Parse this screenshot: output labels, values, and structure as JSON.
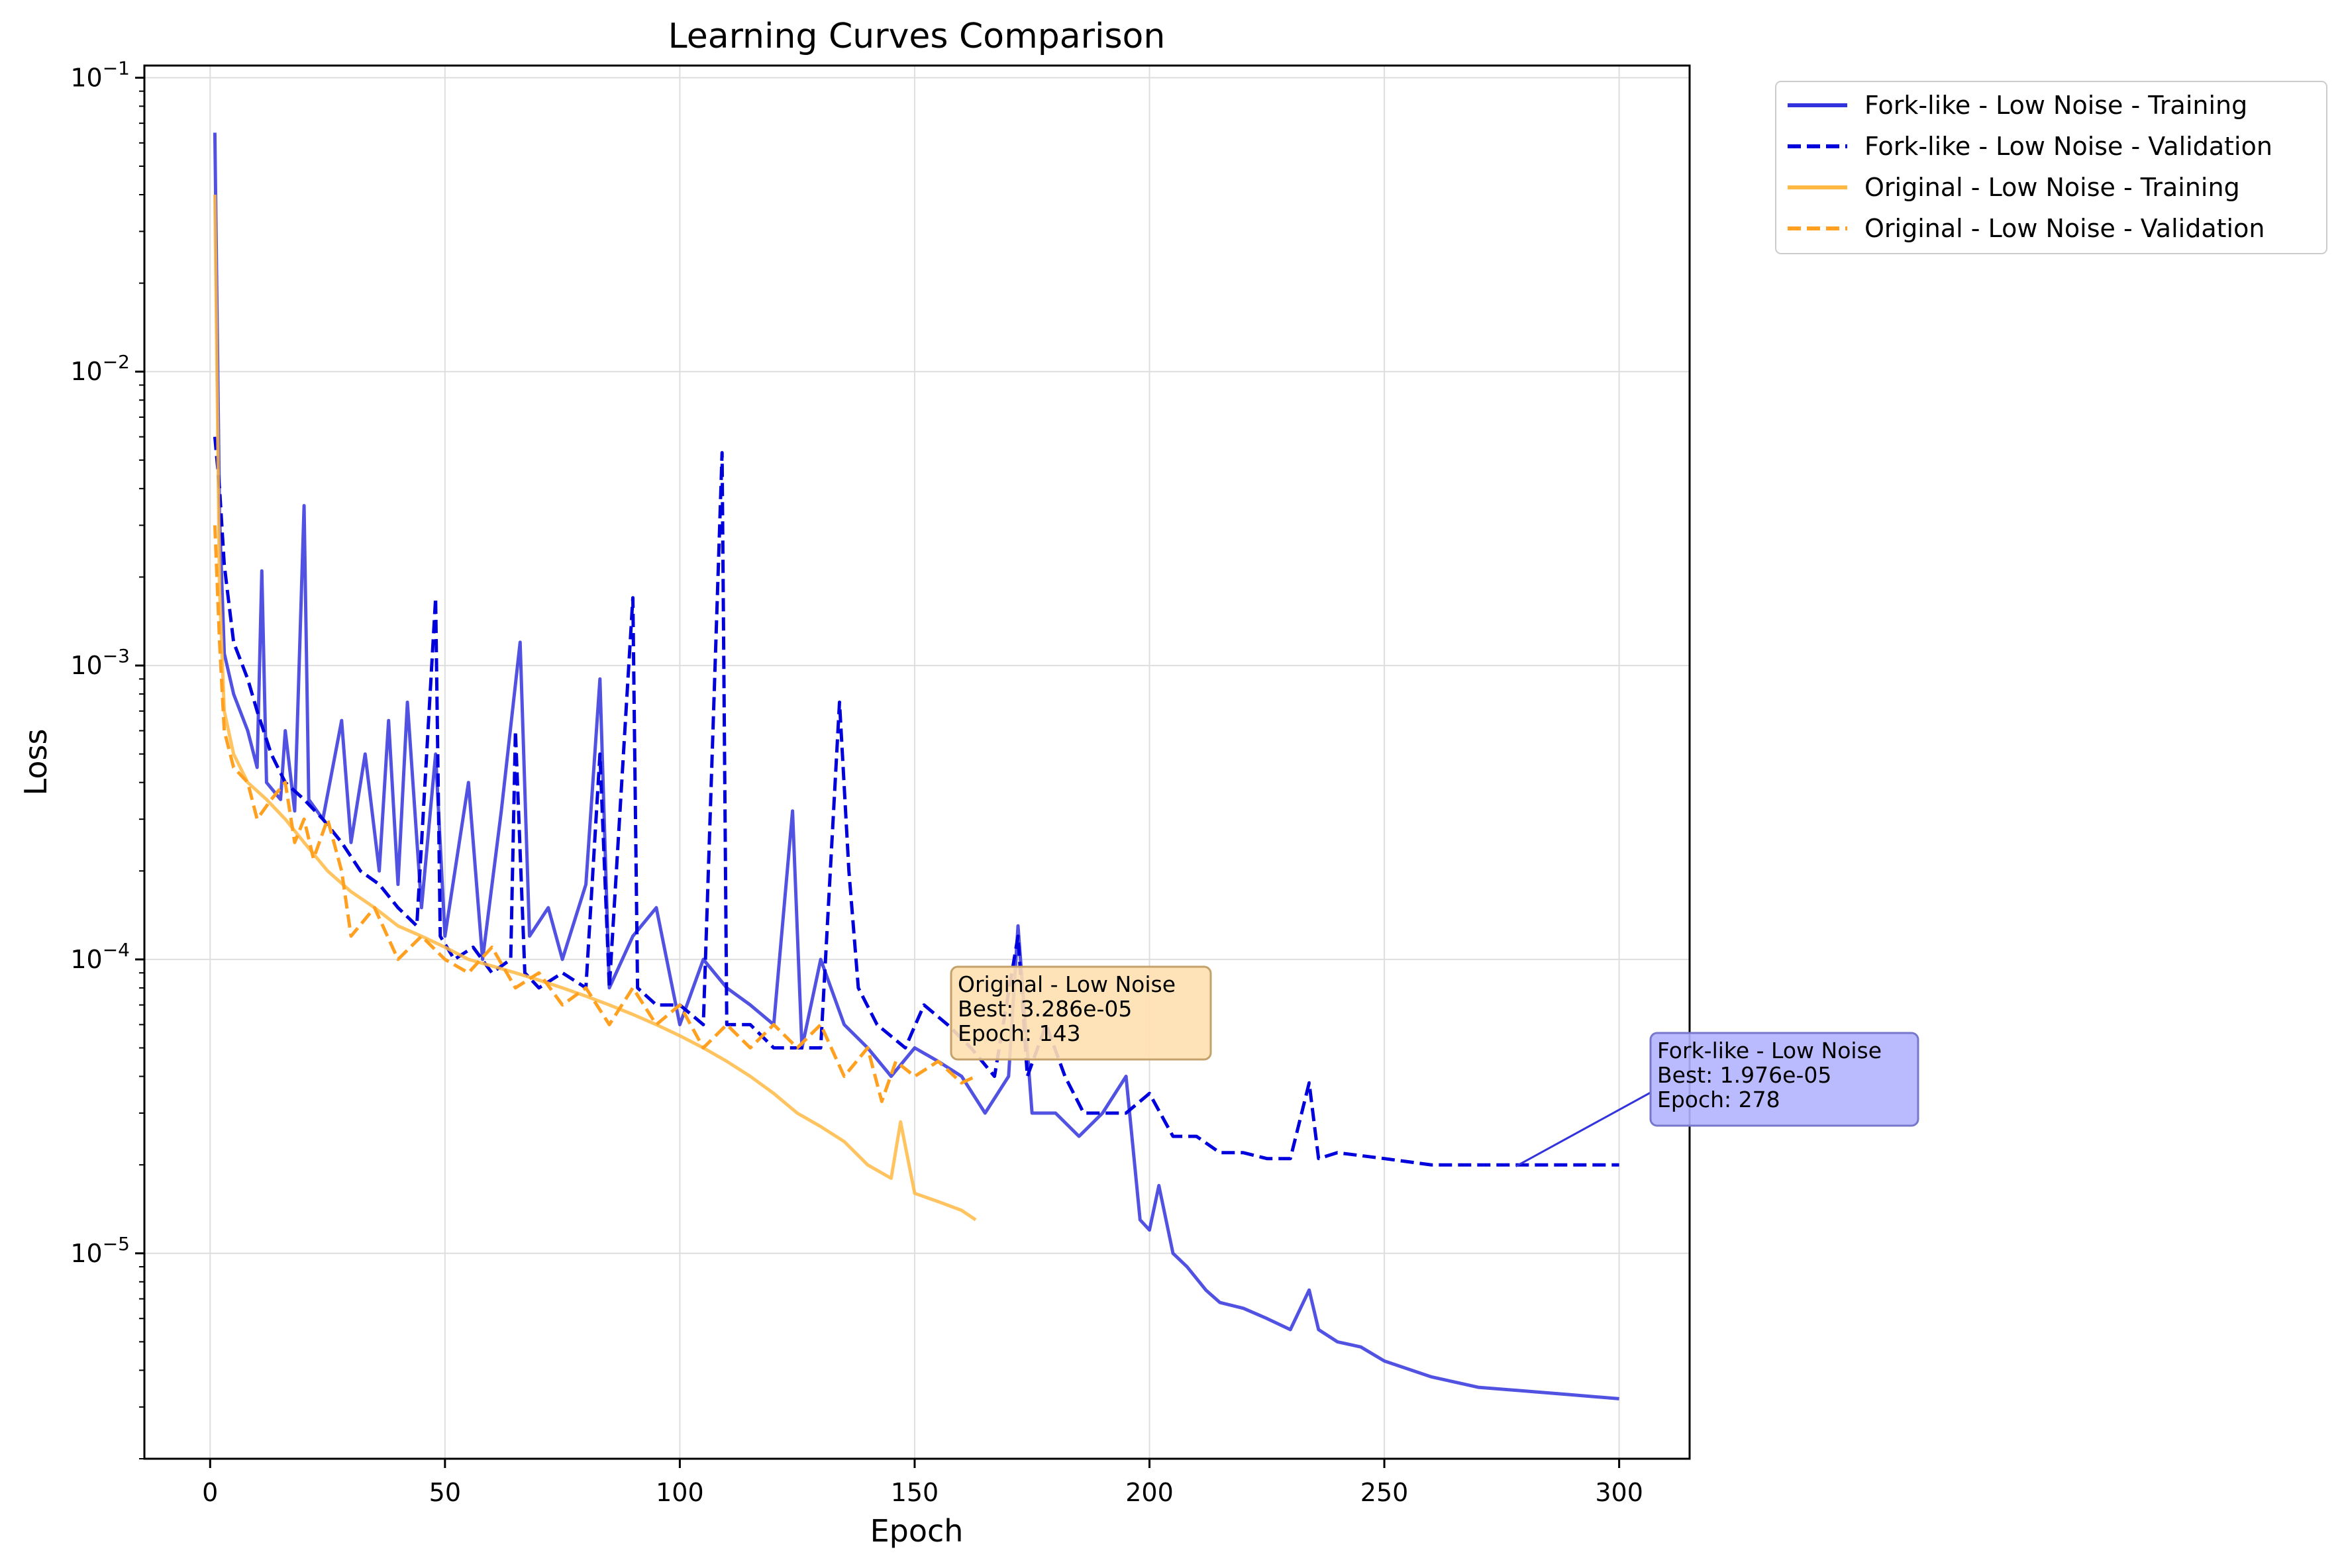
{
  "chart_data": {
    "type": "line",
    "title": "Learning Curves Comparison",
    "xlabel": "Epoch",
    "ylabel": "Loss",
    "x_scale": "linear",
    "y_scale": "log",
    "xlim": [
      -14,
      315
    ],
    "ylim": [
      2e-06,
      0.11
    ],
    "x_ticks": [
      0,
      50,
      100,
      150,
      200,
      250,
      300
    ],
    "x_tick_labels": [
      "0",
      "50",
      "100",
      "150",
      "200",
      "250",
      "300"
    ],
    "y_ticks": [
      1e-05,
      0.0001,
      0.001,
      0.01,
      0.1
    ],
    "y_tick_labels": [
      {
        "base": "10",
        "exp": "−5"
      },
      {
        "base": "10",
        "exp": "−4"
      },
      {
        "base": "10",
        "exp": "−3"
      },
      {
        "base": "10",
        "exp": "−2"
      },
      {
        "base": "10",
        "exp": "−1"
      }
    ],
    "grid": true,
    "legend_position": "outside-top-right",
    "series": [
      {
        "name": "Fork-like - Low Noise - Training",
        "color": "#3333dd",
        "style": "solid",
        "points": [
          [
            1,
            0.065
          ],
          [
            2,
            0.0032
          ],
          [
            3,
            0.0011
          ],
          [
            5,
            0.0008
          ],
          [
            8,
            0.0006
          ],
          [
            10,
            0.00045
          ],
          [
            11,
            0.0021
          ],
          [
            12,
            0.0004
          ],
          [
            15,
            0.00035
          ],
          [
            16,
            0.0006
          ],
          [
            18,
            0.00032
          ],
          [
            20,
            0.0035
          ],
          [
            21,
            0.00035
          ],
          [
            24,
            0.0003
          ],
          [
            28,
            0.00065
          ],
          [
            30,
            0.00025
          ],
          [
            33,
            0.0005
          ],
          [
            36,
            0.0002
          ],
          [
            38,
            0.00065
          ],
          [
            40,
            0.00018
          ],
          [
            42,
            0.00075
          ],
          [
            45,
            0.00015
          ],
          [
            48,
            0.0005
          ],
          [
            50,
            0.00012
          ],
          [
            55,
            0.0004
          ],
          [
            58,
            0.0001
          ],
          [
            62,
            0.00032
          ],
          [
            66,
            0.0012
          ],
          [
            68,
            0.00012
          ],
          [
            72,
            0.00015
          ],
          [
            75,
            0.0001
          ],
          [
            80,
            0.00018
          ],
          [
            83,
            0.0009
          ],
          [
            85,
            8e-05
          ],
          [
            90,
            0.00012
          ],
          [
            95,
            0.00015
          ],
          [
            100,
            6e-05
          ],
          [
            105,
            0.0001
          ],
          [
            110,
            8e-05
          ],
          [
            115,
            7e-05
          ],
          [
            120,
            6e-05
          ],
          [
            124,
            0.00032
          ],
          [
            126,
            5e-05
          ],
          [
            130,
            0.0001
          ],
          [
            135,
            6e-05
          ],
          [
            140,
            5e-05
          ],
          [
            145,
            4e-05
          ],
          [
            150,
            5e-05
          ],
          [
            155,
            4.5e-05
          ],
          [
            160,
            4e-05
          ],
          [
            165,
            3e-05
          ],
          [
            170,
            4e-05
          ],
          [
            172,
            0.00013
          ],
          [
            175,
            3e-05
          ],
          [
            180,
            3e-05
          ],
          [
            185,
            2.5e-05
          ],
          [
            190,
            3e-05
          ],
          [
            195,
            4e-05
          ],
          [
            198,
            1.3e-05
          ],
          [
            200,
            1.2e-05
          ],
          [
            202,
            1.7e-05
          ],
          [
            205,
            1e-05
          ],
          [
            208,
            9e-06
          ],
          [
            212,
            7.5e-06
          ],
          [
            215,
            6.8e-06
          ],
          [
            220,
            6.5e-06
          ],
          [
            225,
            6e-06
          ],
          [
            230,
            5.5e-06
          ],
          [
            234,
            7.5e-06
          ],
          [
            236,
            5.5e-06
          ],
          [
            240,
            5e-06
          ],
          [
            245,
            4.8e-06
          ],
          [
            250,
            4.3e-06
          ],
          [
            260,
            3.8e-06
          ],
          [
            270,
            3.5e-06
          ],
          [
            280,
            3.4e-06
          ],
          [
            290,
            3.3e-06
          ],
          [
            300,
            3.2e-06
          ]
        ]
      },
      {
        "name": "Fork-like - Low Noise - Validation",
        "color": "#0000dd",
        "style": "dashed",
        "points": [
          [
            1,
            0.006
          ],
          [
            2,
            0.004
          ],
          [
            3,
            0.0022
          ],
          [
            5,
            0.0012
          ],
          [
            8,
            0.0009
          ],
          [
            10,
            0.0007
          ],
          [
            13,
            0.0005
          ],
          [
            16,
            0.0004
          ],
          [
            20,
            0.00035
          ],
          [
            24,
            0.0003
          ],
          [
            28,
            0.00025
          ],
          [
            32,
            0.0002
          ],
          [
            36,
            0.00018
          ],
          [
            40,
            0.00015
          ],
          [
            44,
            0.00013
          ],
          [
            48,
            0.0017
          ],
          [
            49,
            0.00012
          ],
          [
            52,
            0.0001
          ],
          [
            56,
            0.00011
          ],
          [
            60,
            9e-05
          ],
          [
            64,
            0.0001
          ],
          [
            65,
            0.0006
          ],
          [
            67,
            9e-05
          ],
          [
            70,
            8e-05
          ],
          [
            75,
            9e-05
          ],
          [
            80,
            8e-05
          ],
          [
            83,
            0.0005
          ],
          [
            85,
            8e-05
          ],
          [
            90,
            0.0017
          ],
          [
            91,
            8e-05
          ],
          [
            95,
            7e-05
          ],
          [
            100,
            7e-05
          ],
          [
            105,
            6e-05
          ],
          [
            109,
            0.0053
          ],
          [
            110,
            6e-05
          ],
          [
            115,
            6e-05
          ],
          [
            120,
            5e-05
          ],
          [
            125,
            5e-05
          ],
          [
            130,
            5e-05
          ],
          [
            134,
            0.00075
          ],
          [
            136,
            0.0002
          ],
          [
            138,
            8e-05
          ],
          [
            142,
            6e-05
          ],
          [
            148,
            5e-05
          ],
          [
            152,
            7e-05
          ],
          [
            157,
            6e-05
          ],
          [
            162,
            5e-05
          ],
          [
            167,
            4e-05
          ],
          [
            172,
            0.00012
          ],
          [
            174,
            4e-05
          ],
          [
            178,
            6e-05
          ],
          [
            182,
            4e-05
          ],
          [
            186,
            3e-05
          ],
          [
            190,
            3e-05
          ],
          [
            195,
            3e-05
          ],
          [
            200,
            3.5e-05
          ],
          [
            205,
            2.5e-05
          ],
          [
            210,
            2.5e-05
          ],
          [
            215,
            2.2e-05
          ],
          [
            220,
            2.2e-05
          ],
          [
            225,
            2.1e-05
          ],
          [
            230,
            2.1e-05
          ],
          [
            234,
            3.8e-05
          ],
          [
            236,
            2.1e-05
          ],
          [
            240,
            2.2e-05
          ],
          [
            250,
            2.1e-05
          ],
          [
            260,
            2e-05
          ],
          [
            270,
            2e-05
          ],
          [
            278,
            2e-05
          ],
          [
            285,
            2e-05
          ],
          [
            300,
            2e-05
          ]
        ]
      },
      {
        "name": "Original - Low Noise - Training",
        "color": "#ffb844",
        "style": "solid",
        "points": [
          [
            1,
            0.04
          ],
          [
            2,
            0.0018
          ],
          [
            3,
            0.0007
          ],
          [
            5,
            0.0005
          ],
          [
            8,
            0.0004
          ],
          [
            12,
            0.00035
          ],
          [
            16,
            0.0003
          ],
          [
            20,
            0.00025
          ],
          [
            25,
            0.0002
          ],
          [
            30,
            0.00017
          ],
          [
            35,
            0.00015
          ],
          [
            40,
            0.00013
          ],
          [
            45,
            0.00012
          ],
          [
            50,
            0.00011
          ],
          [
            55,
            0.0001
          ],
          [
            60,
            9.5e-05
          ],
          [
            65,
            9e-05
          ],
          [
            70,
            8.5e-05
          ],
          [
            75,
            8e-05
          ],
          [
            80,
            7.5e-05
          ],
          [
            85,
            7e-05
          ],
          [
            90,
            6.5e-05
          ],
          [
            95,
            6e-05
          ],
          [
            100,
            5.5e-05
          ],
          [
            105,
            5e-05
          ],
          [
            110,
            4.5e-05
          ],
          [
            115,
            4e-05
          ],
          [
            120,
            3.5e-05
          ],
          [
            125,
            3e-05
          ],
          [
            130,
            2.7e-05
          ],
          [
            135,
            2.4e-05
          ],
          [
            140,
            2e-05
          ],
          [
            145,
            1.8e-05
          ],
          [
            147,
            2.8e-05
          ],
          [
            150,
            1.6e-05
          ],
          [
            155,
            1.5e-05
          ],
          [
            160,
            1.4e-05
          ],
          [
            163,
            1.3e-05
          ]
        ]
      },
      {
        "name": "Original - Low Noise - Validation",
        "color": "#ffa020",
        "style": "dashed",
        "points": [
          [
            1,
            0.003
          ],
          [
            2,
            0.0012
          ],
          [
            3,
            0.0006
          ],
          [
            5,
            0.00045
          ],
          [
            8,
            0.0004
          ],
          [
            10,
            0.0003
          ],
          [
            13,
            0.00035
          ],
          [
            16,
            0.0004
          ],
          [
            18,
            0.00025
          ],
          [
            20,
            0.0003
          ],
          [
            22,
            0.00022
          ],
          [
            25,
            0.0003
          ],
          [
            28,
            0.0002
          ],
          [
            30,
            0.00012
          ],
          [
            35,
            0.00015
          ],
          [
            40,
            0.0001
          ],
          [
            45,
            0.00012
          ],
          [
            50,
            0.0001
          ],
          [
            55,
            9e-05
          ],
          [
            60,
            0.00011
          ],
          [
            65,
            8e-05
          ],
          [
            70,
            9e-05
          ],
          [
            75,
            7e-05
          ],
          [
            80,
            8e-05
          ],
          [
            85,
            6e-05
          ],
          [
            90,
            8e-05
          ],
          [
            95,
            6e-05
          ],
          [
            100,
            7e-05
          ],
          [
            105,
            5e-05
          ],
          [
            110,
            6e-05
          ],
          [
            115,
            5e-05
          ],
          [
            120,
            6e-05
          ],
          [
            125,
            5e-05
          ],
          [
            130,
            6e-05
          ],
          [
            135,
            4e-05
          ],
          [
            140,
            5e-05
          ],
          [
            143,
            3.286e-05
          ],
          [
            146,
            4.5e-05
          ],
          [
            150,
            4e-05
          ],
          [
            155,
            4.5e-05
          ],
          [
            160,
            3.8e-05
          ],
          [
            163,
            4e-05
          ]
        ]
      }
    ],
    "annotations": [
      {
        "series": "Original - Low Noise",
        "lines": [
          "Original - Low Noise",
          "Best: 3.286e-05",
          "Epoch: 143"
        ],
        "x": 143,
        "y": 3.286e-05,
        "box_color": "#ffe0b0",
        "border_color": "#c4a06a",
        "arrow": false
      },
      {
        "series": "Fork-like - Low Noise",
        "lines": [
          "Fork-like - Low Noise",
          "Best: 1.976e-05",
          "Epoch: 278"
        ],
        "x": 278,
        "y": 1.976e-05,
        "box_color": "#b3b3ff",
        "border_color": "#7777cc",
        "arrow": true
      }
    ]
  }
}
